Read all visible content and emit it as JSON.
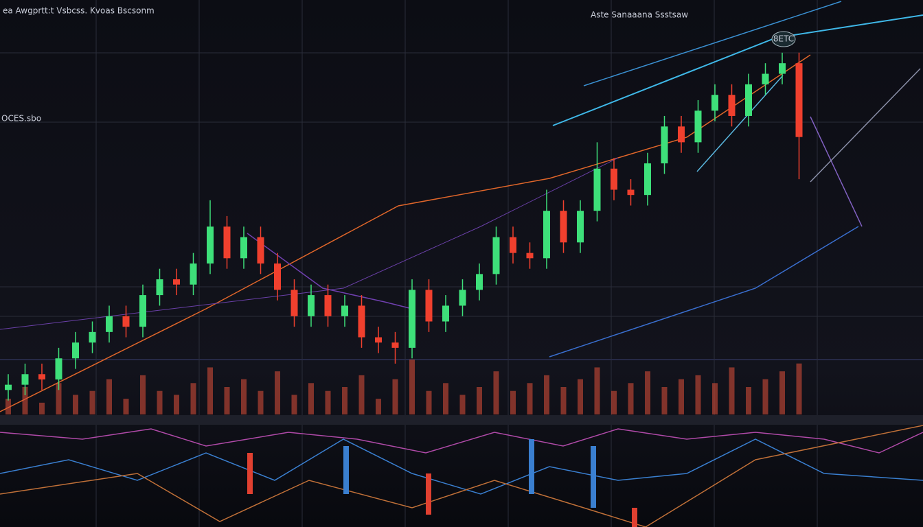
{
  "chart_data": {
    "type": "candlestick",
    "title": "ea Awgprtt:t Vsbcss. Kvoas Bscsonm",
    "subtitle": "Aste Sanaaana Ssstsaw",
    "annotations": [
      "8ETC",
      "OCES.sbo"
    ],
    "ylim": [
      0,
      100
    ],
    "up_color": "#3ee07a",
    "down_color": "#f0402e",
    "volume_color": "#e0503a",
    "open": [
      26,
      27,
      29,
      28,
      32,
      35,
      37,
      40,
      38,
      44,
      47,
      46,
      50,
      57,
      51,
      55,
      50,
      45,
      40,
      44,
      40,
      42,
      36,
      35,
      34,
      45,
      39,
      42,
      45,
      48,
      55,
      52,
      51,
      60,
      54,
      60,
      68,
      64,
      63,
      69,
      76,
      73,
      79,
      82,
      78,
      84,
      86,
      88
    ],
    "high": [
      29,
      31,
      31,
      34,
      37,
      39,
      42,
      42,
      46,
      49,
      49,
      52,
      62,
      59,
      57,
      57,
      52,
      47,
      46,
      46,
      44,
      44,
      38,
      37,
      47,
      47,
      44,
      47,
      50,
      57,
      57,
      54,
      64,
      62,
      62,
      73,
      70,
      66,
      71,
      78,
      78,
      81,
      84,
      84,
      86,
      88,
      90,
      90
    ],
    "low": [
      24,
      25,
      26,
      26,
      30,
      33,
      35,
      36,
      36,
      42,
      44,
      44,
      48,
      49,
      49,
      48,
      43,
      38,
      38,
      38,
      38,
      34,
      33,
      31,
      32,
      37,
      37,
      40,
      43,
      46,
      50,
      49,
      49,
      52,
      52,
      58,
      62,
      61,
      61,
      67,
      71,
      71,
      77,
      76,
      76,
      82,
      84,
      66
    ],
    "close": [
      27,
      29,
      28,
      32,
      35,
      37,
      40,
      38,
      44,
      47,
      46,
      50,
      57,
      51,
      55,
      50,
      45,
      40,
      44,
      40,
      42,
      36,
      35,
      34,
      45,
      39,
      42,
      45,
      48,
      55,
      52,
      51,
      60,
      54,
      60,
      68,
      64,
      63,
      69,
      76,
      73,
      79,
      82,
      78,
      84,
      86,
      88,
      74
    ],
    "volume": [
      20,
      35,
      15,
      40,
      25,
      30,
      45,
      20,
      50,
      30,
      25,
      40,
      60,
      35,
      45,
      30,
      55,
      25,
      40,
      30,
      35,
      50,
      20,
      45,
      70,
      30,
      40,
      25,
      35,
      55,
      30,
      40,
      50,
      35,
      45,
      60,
      30,
      40,
      55,
      35,
      45,
      50,
      40,
      60,
      35,
      45,
      55,
      65
    ]
  }
}
